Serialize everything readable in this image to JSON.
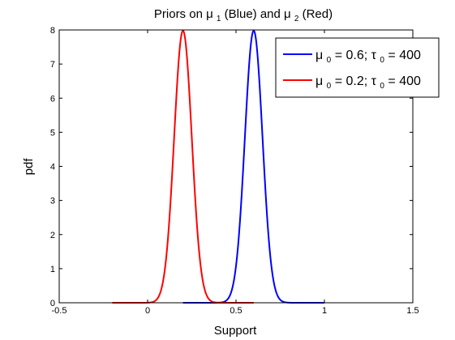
{
  "chart_data": {
    "type": "line",
    "title": {
      "prefix": "Priors on ",
      "sym1": "μ",
      "sub1": "1",
      "mid": " (Blue) and ",
      "sym2": "μ",
      "sub2": "2",
      "suffix": " (Red)"
    },
    "xlabel": "Support",
    "ylabel": "pdf",
    "xlim": [
      -0.5,
      1.5
    ],
    "ylim": [
      0,
      8
    ],
    "xticks": [
      -0.5,
      0,
      0.5,
      1,
      1.5
    ],
    "xtick_labels": [
      "-0.5",
      "0",
      "0.5",
      "1",
      "1.5"
    ],
    "yticks": [
      0,
      1,
      2,
      3,
      4,
      5,
      6,
      7,
      8
    ],
    "ytick_labels": [
      "0",
      "1",
      "2",
      "3",
      "4",
      "5",
      "6",
      "7",
      "8"
    ],
    "grid": false,
    "legend_position": "top-right",
    "series": [
      {
        "color": "#0000ff",
        "distribution": "normal",
        "mu0": 0.6,
        "tau0": 400,
        "x_range": [
          0.2,
          1.0
        ],
        "peak": 7.98,
        "legend": {
          "sym": "μ",
          "sub": "0",
          "mid": " = 0.6; ",
          "sym2": "τ",
          "sub2": "0",
          "tail": " = 400"
        }
      },
      {
        "color": "#ff0000",
        "distribution": "normal",
        "mu0": 0.2,
        "tau0": 400,
        "x_range": [
          -0.2,
          0.6
        ],
        "peak": 7.98,
        "legend": {
          "sym": "μ",
          "sub": "0",
          "mid": " = 0.2; ",
          "sym2": "τ",
          "sub2": "0",
          "tail": " = 400"
        }
      }
    ]
  }
}
